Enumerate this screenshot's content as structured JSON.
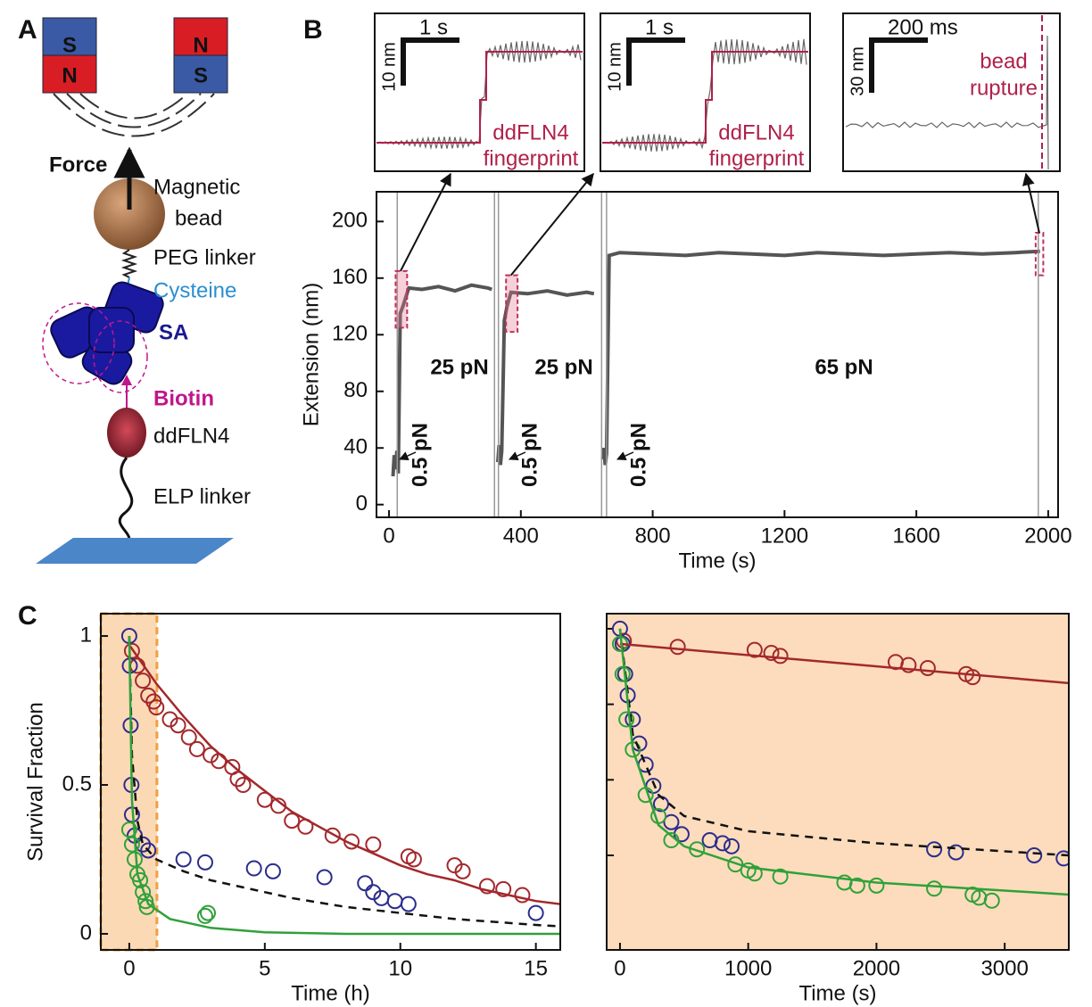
{
  "panel_labels": [
    "A",
    "B",
    "C"
  ],
  "diagram": {
    "magnets": [
      "S",
      "N",
      "N",
      "S"
    ],
    "force": "Force",
    "bead": [
      "Magnetic",
      "bead"
    ],
    "peg": "PEG linker",
    "cysteine": "Cysteine",
    "sa": "SA",
    "biotin": "Biotin",
    "protein": "ddFLN4",
    "elp": "ELP linker"
  },
  "chart_data": [
    {
      "type": "line",
      "x_label": "Time (s)",
      "y_label": "Extension (nm)",
      "xlim": [
        -38,
        2030
      ],
      "xticks": [
        0,
        400,
        800,
        1200,
        1600,
        2000
      ],
      "ylim": [
        -9,
        221
      ],
      "yticks": [
        0,
        40,
        80,
        120,
        160,
        200
      ],
      "x": [
        12,
        16,
        20,
        24,
        28,
        34,
        42,
        60,
        100,
        150,
        200,
        250,
        300,
        312,
        322,
        330,
        334,
        338,
        342,
        350,
        358,
        370,
        420,
        480,
        540,
        600,
        622,
        640,
        648,
        652,
        656,
        660,
        668,
        700,
        800,
        900,
        1000,
        1100,
        1200,
        1300,
        1400,
        1500,
        1600,
        1700,
        1800,
        1900,
        1975
      ],
      "series": [
        {
          "color": "#555555",
          "values": [
            20,
            35,
            25,
            38,
            22,
            135,
            140,
            153,
            152,
            154,
            151,
            155,
            153,
            152,
            null,
            30,
            42,
            28,
            38,
            130,
            140,
            150,
            149,
            151,
            148,
            150,
            149,
            null,
            32,
            40,
            28,
            36,
            176,
            178,
            177,
            176,
            178,
            177,
            176,
            178,
            177,
            176,
            177,
            178,
            177,
            178,
            179
          ]
        }
      ],
      "force_labels": [
        "25 pN",
        "25 pN",
        "65 pN"
      ],
      "low_force_labels": [
        "0.5 pN",
        "0.5 pN",
        "0.5 pN"
      ],
      "vlines": [
        25,
        320,
        332,
        645,
        660,
        1970
      ],
      "highlights": [
        {
          "x": [
            20,
            55
          ],
          "y": [
            125,
            165
          ]
        },
        {
          "x": [
            355,
            390
          ],
          "y": [
            122,
            162
          ]
        },
        {
          "x": [
            1962,
            1985
          ],
          "y": [
            162,
            192
          ]
        }
      ],
      "insets": [
        {
          "time_scale": "1 s",
          "length_scale": "10 nm",
          "note": [
            "ddFLN4",
            "fingerprint"
          ]
        },
        {
          "time_scale": "1 s",
          "length_scale": "10 nm",
          "note": [
            "ddFLN4",
            "fingerprint"
          ]
        },
        {
          "time_scale": "200 ms",
          "length_scale": "30 nm",
          "note": [
            "bead",
            "rupture"
          ]
        }
      ]
    },
    {
      "type": "scatter",
      "x_label": "Time (h)",
      "y_label": "Survival Fraction",
      "xlim": [
        -1.05,
        15.9
      ],
      "xticks": [
        0,
        5,
        10,
        15
      ],
      "ylim": [
        -0.054,
        1.075
      ],
      "yticks": [
        0,
        0.5,
        1
      ],
      "highlight_xrange": [
        -1.05,
        1.02
      ],
      "highlight_color": "#fbd9b5",
      "series": [
        {
          "mode": "markers",
          "color": "#a3282c",
          "x": [
            0.1,
            0.3,
            0.5,
            0.7,
            0.9,
            1.0,
            1.5,
            1.8,
            2.2,
            2.5,
            3.0,
            3.3,
            3.8,
            4.0,
            4.2,
            5.0,
            5.5,
            6.0,
            6.5,
            7.5,
            8.2,
            9.0,
            10.3,
            10.5,
            12.0,
            12.3,
            13.2,
            13.8,
            14.5
          ],
          "values": [
            0.95,
            0.9,
            0.85,
            0.8,
            0.78,
            0.76,
            0.72,
            0.7,
            0.66,
            0.62,
            0.6,
            0.58,
            0.56,
            0.52,
            0.5,
            0.45,
            0.43,
            0.38,
            0.36,
            0.33,
            0.31,
            0.3,
            0.26,
            0.25,
            0.23,
            0.21,
            0.16,
            0.15,
            0.13
          ]
        },
        {
          "mode": "markers",
          "color": "#2b2d8c",
          "x": [
            0.0,
            0.02,
            0.05,
            0.08,
            0.1,
            0.2,
            0.5,
            0.7,
            2.0,
            2.8,
            4.6,
            5.3,
            7.2,
            8.7,
            9.0,
            9.3,
            9.8,
            10.3,
            15.0
          ],
          "values": [
            1.0,
            0.9,
            0.7,
            0.5,
            0.4,
            0.33,
            0.3,
            0.28,
            0.25,
            0.24,
            0.22,
            0.21,
            0.19,
            0.17,
            0.14,
            0.12,
            0.11,
            0.1,
            0.07
          ]
        },
        {
          "mode": "markers",
          "color": "#2fa13a",
          "x": [
            0.0,
            0.1,
            0.2,
            0.3,
            0.4,
            0.5,
            0.6,
            0.65,
            2.8,
            2.9
          ],
          "values": [
            0.35,
            0.3,
            0.25,
            0.2,
            0.18,
            0.14,
            0.11,
            0.09,
            0.06,
            0.07
          ]
        },
        {
          "mode": "line",
          "color": "#a3282c",
          "x": [
            0,
            1,
            2,
            3,
            4,
            5,
            6,
            7,
            8,
            9,
            10,
            11,
            12,
            13,
            14,
            15,
            15.9
          ],
          "values": [
            0.97,
            0.84,
            0.73,
            0.63,
            0.55,
            0.48,
            0.41,
            0.36,
            0.31,
            0.27,
            0.23,
            0.2,
            0.18,
            0.15,
            0.13,
            0.11,
            0.1
          ]
        },
        {
          "mode": "line",
          "dash": true,
          "color": "#111111",
          "x": [
            0,
            0.1,
            0.3,
            0.5,
            1,
            2,
            3,
            4,
            6,
            8,
            10,
            12,
            15,
            15.9
          ],
          "values": [
            1,
            0.6,
            0.38,
            0.3,
            0.25,
            0.21,
            0.18,
            0.16,
            0.12,
            0.09,
            0.07,
            0.05,
            0.03,
            0.025
          ]
        },
        {
          "mode": "line",
          "color": "#2fa13a",
          "x": [
            0,
            0.1,
            0.3,
            0.7,
            1.5,
            3,
            5,
            8,
            12,
            15.9
          ],
          "values": [
            1,
            0.45,
            0.2,
            0.1,
            0.05,
            0.02,
            0.005,
            0,
            0,
            0
          ]
        }
      ]
    },
    {
      "type": "scatter",
      "x_label": "Time (s)",
      "xlim": [
        -104,
        3500
      ],
      "xticks": [
        0,
        1000,
        2000,
        3000
      ],
      "ylim": [
        -0.063,
        1.05
      ],
      "yticks": [
        0.25,
        0.5,
        0.75,
        1
      ],
      "tick_labels": false,
      "background": "#fcdcbc",
      "series": [
        {
          "mode": "markers",
          "color": "#a3282c",
          "x": [
            30,
            450,
            1050,
            1180,
            1250,
            2150,
            2250,
            2400,
            2700,
            2750
          ],
          "values": [
            0.96,
            0.94,
            0.93,
            0.92,
            0.91,
            0.89,
            0.88,
            0.87,
            0.85,
            0.84
          ]
        },
        {
          "mode": "markers",
          "color": "#2b2d8c",
          "x": [
            0,
            20,
            40,
            60,
            100,
            150,
            200,
            260,
            320,
            400,
            480,
            700,
            800,
            870,
            2450,
            2620,
            3230,
            3460
          ],
          "values": [
            1.0,
            0.95,
            0.85,
            0.78,
            0.7,
            0.62,
            0.55,
            0.48,
            0.42,
            0.36,
            0.32,
            0.3,
            0.29,
            0.28,
            0.27,
            0.26,
            0.25,
            0.24
          ]
        },
        {
          "mode": "markers",
          "color": "#2fa13a",
          "x": [
            0,
            20,
            50,
            100,
            200,
            300,
            400,
            600,
            900,
            1000,
            1050,
            1250,
            1750,
            1850,
            2000,
            2450,
            2750,
            2800,
            2900
          ],
          "values": [
            0.95,
            0.85,
            0.7,
            0.6,
            0.45,
            0.38,
            0.3,
            0.27,
            0.22,
            0.2,
            0.19,
            0.18,
            0.16,
            0.15,
            0.15,
            0.14,
            0.12,
            0.11,
            0.1
          ]
        },
        {
          "mode": "line",
          "color": "#a3282c",
          "x": [
            0,
            3500
          ],
          "values": [
            0.95,
            0.82
          ]
        },
        {
          "mode": "line",
          "dash": true,
          "color": "#111111",
          "x": [
            0,
            100,
            300,
            500,
            1000,
            2000,
            3500
          ],
          "values": [
            1,
            0.65,
            0.45,
            0.38,
            0.33,
            0.29,
            0.25
          ]
        },
        {
          "mode": "line",
          "color": "#2fa13a",
          "x": [
            0,
            100,
            300,
            500,
            1000,
            2000,
            3500
          ],
          "values": [
            1,
            0.6,
            0.35,
            0.28,
            0.21,
            0.16,
            0.12
          ]
        }
      ]
    }
  ]
}
